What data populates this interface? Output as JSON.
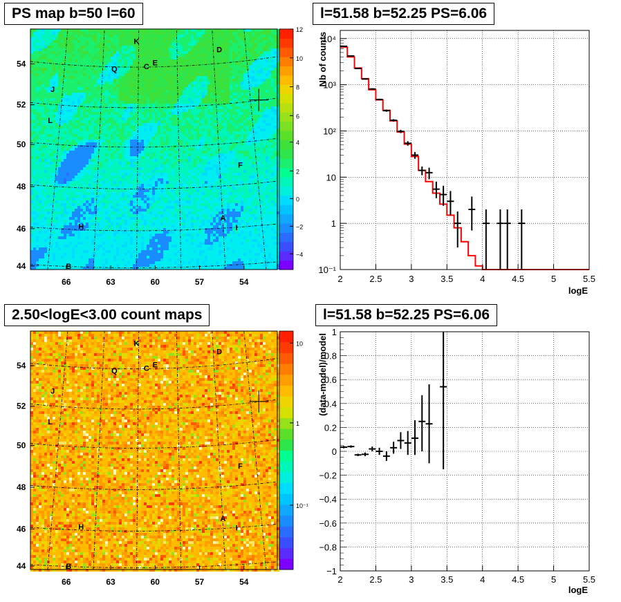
{
  "chart_data": [
    {
      "type": "heatmap",
      "title": "PS map b=50 l=60",
      "x_ticks": [
        "66",
        "63",
        "60",
        "57",
        "54"
      ],
      "y_ticks": [
        "44",
        "46",
        "48",
        "50",
        "52",
        "54"
      ],
      "colorbar_ticks": [
        "12",
        "10",
        "8",
        "6",
        "4",
        "2",
        "0",
        "−2",
        "−4"
      ],
      "colorbar_range": [
        -5,
        12
      ],
      "source_labels": [
        "K",
        "D",
        "Q",
        "C",
        "E",
        "J",
        "L",
        "F",
        "H",
        "A",
        "I",
        "B"
      ],
      "marker": "l=51.58 b=52.25"
    },
    {
      "type": "line",
      "title": "l=51.58 b=52.25 PS=6.06",
      "xlabel": "logE",
      "ylabel": "Nb of counts",
      "xlim": [
        2,
        5.5
      ],
      "ylim": [
        0.1,
        15000
      ],
      "yscale": "log",
      "grid": true,
      "x_ticks": [
        "2",
        "2.5",
        "3",
        "3.5",
        "4",
        "4.5",
        "5",
        "5.5"
      ],
      "y_ticks": [
        "10⁻¹",
        "1",
        "10",
        "10²",
        "10³",
        "10⁴"
      ],
      "series": [
        {
          "type": "step",
          "color": "#ff0000",
          "bin_edges": [
            2.0,
            2.1,
            2.2,
            2.3,
            2.4,
            2.5,
            2.6,
            2.7,
            2.8,
            2.9,
            3.0,
            3.1,
            3.2,
            3.3,
            3.4,
            3.5,
            3.6,
            3.7,
            3.8,
            3.9,
            4.0,
            4.1,
            4.2,
            4.3,
            4.4,
            4.5,
            4.6,
            4.7,
            4.8,
            4.9,
            5.0,
            5.1,
            5.2,
            5.3,
            5.4,
            5.5
          ],
          "values": [
            6500,
            4000,
            2300,
            1350,
            780,
            470,
            280,
            165,
            95,
            52,
            28,
            14,
            8,
            4.5,
            2.6,
            1.5,
            0.8,
            0.4,
            0.2,
            0.12,
            0.1,
            0.1,
            0.1,
            0.1,
            0.1,
            0.1,
            0.1,
            0.1,
            0.1,
            0.1,
            0.1,
            0.1,
            0.1,
            0.1,
            0.1
          ]
        },
        {
          "type": "errorbar",
          "color": "#000000",
          "x": [
            2.05,
            2.15,
            2.25,
            2.35,
            2.45,
            2.55,
            2.65,
            2.75,
            2.85,
            2.95,
            3.05,
            3.15,
            3.25,
            3.35,
            3.45,
            3.55,
            3.65,
            3.85,
            4.05,
            4.25,
            4.35,
            4.55
          ],
          "y": [
            6800,
            4200,
            2250,
            1330,
            810,
            480,
            275,
            170,
            98,
            54,
            30,
            14,
            12.5,
            5.5,
            4.2,
            3,
            1,
            2,
            1,
            1,
            1,
            1
          ],
          "ylo": [
            6600,
            4100,
            2200,
            1300,
            780,
            460,
            260,
            160,
            90,
            48,
            25,
            11,
            9,
            3.5,
            2.4,
            1.5,
            0.3,
            0.7,
            0.1,
            0.1,
            0.1,
            0.1
          ],
          "yhi": [
            7000,
            4300,
            2300,
            1360,
            840,
            500,
            290,
            180,
            106,
            60,
            35,
            17,
            16,
            8,
            6.5,
            5,
            1.8,
            3.8,
            2,
            2,
            2,
            2
          ]
        }
      ]
    },
    {
      "type": "heatmap",
      "title": "2.50<logE<3.00 count maps",
      "x_ticks": [
        "66",
        "63",
        "60",
        "57",
        "54"
      ],
      "y_ticks": [
        "44",
        "46",
        "48",
        "50",
        "52",
        "54"
      ],
      "colorbar_ticks": [
        "10",
        "1",
        "10⁻¹"
      ],
      "colorbar_scale": "log",
      "source_labels": [
        "K",
        "D",
        "Q",
        "C",
        "E",
        "J",
        "L",
        "F",
        "H",
        "A",
        "I",
        "B"
      ],
      "marker": "l=51.58 b=52.25"
    },
    {
      "type": "scatter",
      "title": "l=51.58 b=52.25 PS=6.06",
      "xlabel": "logE",
      "ylabel": "(data-model)/model",
      "xlim": [
        2,
        5.5
      ],
      "ylim": [
        -1,
        1
      ],
      "grid": true,
      "x_ticks": [
        "2",
        "2.5",
        "3",
        "3.5",
        "4",
        "4.5",
        "5",
        "5.5"
      ],
      "y_ticks": [
        "1",
        "0.8",
        "0.6",
        "0.4",
        "0.2",
        "0",
        "−0.2",
        "−0.4",
        "−0.6",
        "−0.8",
        "−1"
      ],
      "series": [
        {
          "type": "errorbar",
          "color": "#000000",
          "x": [
            2.05,
            2.15,
            2.25,
            2.35,
            2.45,
            2.55,
            2.65,
            2.75,
            2.85,
            2.95,
            3.05,
            3.15,
            3.25,
            3.45
          ],
          "y": [
            0.035,
            0.04,
            -0.03,
            -0.025,
            0.02,
            0.0,
            -0.04,
            0.03,
            0.09,
            0.07,
            0.11,
            0.25,
            0.23,
            0.54
          ],
          "ylo": [
            0.025,
            0.03,
            -0.04,
            -0.04,
            0.0,
            -0.03,
            -0.08,
            -0.02,
            0.02,
            -0.03,
            -0.03,
            0.0,
            -0.1,
            -0.15
          ],
          "yhi": [
            0.045,
            0.05,
            -0.02,
            -0.01,
            0.04,
            0.03,
            0.0,
            0.08,
            0.16,
            0.17,
            0.26,
            0.47,
            0.56,
            1.0
          ]
        }
      ]
    }
  ]
}
